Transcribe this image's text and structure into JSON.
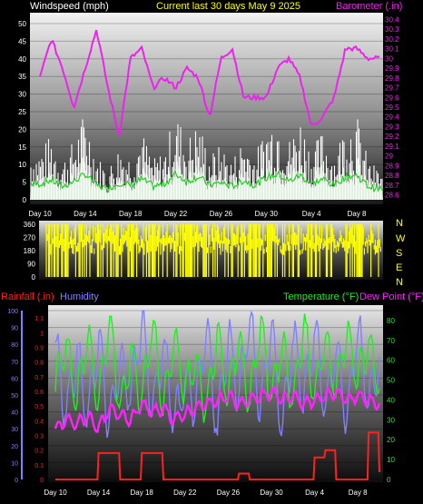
{
  "header": {
    "left_title": "Windspeed (mph)",
    "center_title": "Current last 30 days May 9 2025",
    "right_title": "Barometer (.in)"
  },
  "bottom_header": {
    "rainfall": "Rainfall (.in)",
    "humidity": "Humidity",
    "temperature": "Temperature (°F)",
    "dewpoint": "Dew Point (°F)"
  },
  "colors": {
    "windspeed": "#ffffff",
    "gust_avg": "#22cc22",
    "barometer": "#ee22ee",
    "wind_direction": "#ffff00",
    "rainfall": "#ff2020",
    "humidity": "#8080ff",
    "temperature": "#20ee20",
    "dewpoint": "#ff22ff",
    "title": "#ffff00"
  },
  "chart_data": [
    {
      "type": "line",
      "name": "wind-barometer",
      "x_ticks": [
        "Day 10",
        "Day 14",
        "Day 18",
        "Day 22",
        "Day 26",
        "Day 30",
        "Day 4",
        "Day 8"
      ],
      "left_axis": {
        "ticks": [
          "0",
          "5",
          "10",
          "15",
          "20",
          "25",
          "30",
          "35",
          "40",
          "45",
          "50"
        ],
        "ylim": [
          0,
          50
        ]
      },
      "right_axis": {
        "ticks": [
          "28.6",
          "28.7",
          "28.8",
          "28.9",
          "29",
          "29.1",
          "29.2",
          "29.3",
          "29.4",
          "29.5",
          "29.6",
          "29.7",
          "29.8",
          "29.9",
          "30",
          "30.1",
          "30.2",
          "30.3",
          "30.4"
        ],
        "ylim": [
          28.55,
          30.45
        ]
      },
      "series": [
        {
          "name": "Windspeed (mph)",
          "key": "wind",
          "x": [
            0,
            1,
            2,
            3,
            4,
            5,
            6,
            7,
            8,
            9,
            10,
            11,
            12,
            13,
            14,
            15,
            16,
            17,
            18,
            19,
            20,
            21,
            22,
            23,
            24,
            25,
            26,
            27,
            28,
            29,
            30
          ],
          "y": [
            10,
            13,
            8,
            12,
            18,
            9,
            6,
            11,
            9,
            14,
            8,
            10,
            18,
            12,
            16,
            9,
            11,
            8,
            13,
            9,
            15,
            18,
            12,
            17,
            10,
            14,
            9,
            16,
            17,
            8,
            6
          ]
        },
        {
          "name": "Barometer (.in)",
          "key": "baro",
          "x": [
            0,
            1,
            2,
            3,
            4,
            5,
            6,
            7,
            8,
            9,
            10,
            11,
            12,
            13,
            14,
            15,
            16,
            17,
            18,
            19,
            20,
            21,
            22,
            23,
            24,
            25,
            26,
            27,
            28,
            29,
            30
          ],
          "y": [
            29.8,
            30.2,
            29.9,
            29.5,
            29.9,
            30.3,
            29.7,
            29.2,
            30.0,
            30.1,
            29.7,
            29.8,
            29.7,
            29.9,
            29.8,
            29.4,
            30.0,
            30.1,
            29.6,
            29.6,
            29.6,
            29.9,
            30.0,
            29.8,
            29.3,
            29.4,
            29.6,
            30.1,
            30.1,
            30.0,
            30.0
          ]
        }
      ]
    },
    {
      "type": "line",
      "name": "wind-direction",
      "left_axis": {
        "ticks": [
          "0",
          "90",
          "180",
          "270",
          "360"
        ],
        "ylim": [
          0,
          360
        ]
      },
      "right_labels": [
        "N",
        "W",
        "S",
        "E",
        "N"
      ]
    },
    {
      "type": "line",
      "name": "rain-humidity-temp",
      "x_ticks": [
        "Day 10",
        "Day 14",
        "Day 18",
        "Day 22",
        "Day 26",
        "Day 30",
        "Day 4",
        "Day 8"
      ],
      "humidity_axis": {
        "ticks": [
          "0",
          "10",
          "20",
          "30",
          "40",
          "50",
          "60",
          "70",
          "80",
          "90",
          "100"
        ],
        "ylim": [
          0,
          100
        ]
      },
      "rain_axis": {
        "ticks": [
          "0",
          "0.1",
          "0.2",
          "0.3",
          "0.4",
          "0.5",
          "0.6",
          "0.7",
          "0.8",
          "0.9",
          "1",
          "1.1"
        ],
        "ylim": [
          0,
          1.15
        ]
      },
      "temp_axis": {
        "ticks": [
          "0",
          "10",
          "20",
          "30",
          "40",
          "50",
          "60",
          "70",
          "80"
        ],
        "ylim": [
          0,
          85
        ]
      },
      "series": [
        {
          "name": "Humidity",
          "key": "hum",
          "x": [
            0,
            1,
            2,
            3,
            4,
            5,
            6,
            7,
            8,
            9,
            10,
            11,
            12,
            13,
            14,
            15,
            16,
            17,
            18,
            19,
            20,
            21,
            22,
            23,
            24,
            25,
            26,
            27,
            28,
            29,
            30
          ],
          "y": [
            80,
            40,
            75,
            35,
            85,
            30,
            70,
            50,
            95,
            40,
            80,
            35,
            60,
            45,
            90,
            30,
            85,
            50,
            95,
            40,
            90,
            30,
            85,
            45,
            90,
            40,
            80,
            35,
            90,
            45,
            70
          ]
        },
        {
          "name": "Temperature (°F)",
          "key": "temp",
          "x": [
            0,
            1,
            2,
            3,
            4,
            5,
            6,
            7,
            8,
            9,
            10,
            11,
            12,
            13,
            14,
            15,
            16,
            17,
            18,
            19,
            20,
            21,
            22,
            23,
            24,
            25,
            26,
            27,
            28,
            29,
            30
          ],
          "y": [
            45,
            70,
            40,
            75,
            38,
            82,
            35,
            65,
            40,
            80,
            35,
            70,
            45,
            60,
            35,
            75,
            42,
            72,
            38,
            80,
            40,
            70,
            38,
            80,
            40,
            72,
            45,
            75,
            50,
            70,
            45
          ]
        },
        {
          "name": "Dew Point (°F)",
          "key": "dew",
          "x": [
            0,
            1,
            2,
            3,
            4,
            5,
            6,
            7,
            8,
            9,
            10,
            11,
            12,
            13,
            14,
            15,
            16,
            17,
            18,
            19,
            20,
            21,
            22,
            23,
            24,
            25,
            26,
            27,
            28,
            29,
            30
          ],
          "y": [
            25,
            30,
            28,
            32,
            26,
            35,
            33,
            30,
            38,
            34,
            36,
            30,
            33,
            36,
            38,
            40,
            42,
            38,
            40,
            42,
            44,
            40,
            42,
            38,
            40,
            42,
            44,
            40,
            42,
            40,
            38
          ]
        },
        {
          "name": "Rainfall (.in)",
          "key": "rain",
          "x": [
            0,
            1,
            2,
            3,
            4,
            5,
            6,
            7,
            8,
            9,
            10,
            11,
            12,
            13,
            14,
            15,
            16,
            17,
            18,
            19,
            20,
            21,
            22,
            23,
            24,
            25,
            26,
            27,
            28,
            29,
            30
          ],
          "y": [
            0,
            0,
            0,
            0,
            0.18,
            0.18,
            0,
            0,
            0.18,
            0.18,
            0,
            0,
            0,
            0,
            0,
            0,
            0,
            0.04,
            0,
            0,
            0,
            0,
            0,
            0,
            0.15,
            0.2,
            0,
            0,
            0,
            0.32,
            0.05
          ]
        }
      ]
    }
  ]
}
